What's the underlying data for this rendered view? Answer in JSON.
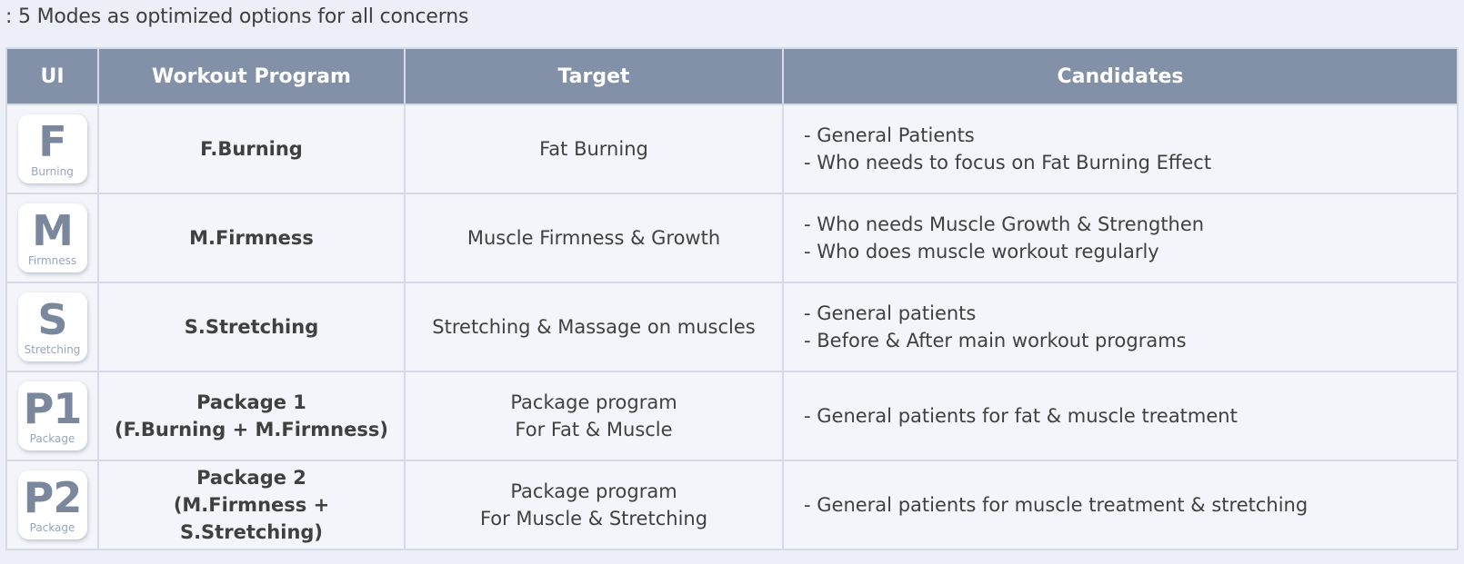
{
  "subtitle": ": 5 Modes as optimized options for all concerns",
  "columns": {
    "ui": "UI",
    "program": "Workout Program",
    "target": "Target",
    "candidates": "Candidates"
  },
  "rows": [
    {
      "icon_letter": "F",
      "icon_sub": "Burning",
      "icon_name": "fat-burning-mode-icon",
      "program": [
        "F.Burning"
      ],
      "target": [
        "Fat Burning"
      ],
      "candidates": [
        "- General Patients",
        "- Who needs to focus on Fat Burning Effect"
      ]
    },
    {
      "icon_letter": "M",
      "icon_sub": "Firmness",
      "icon_name": "muscle-firmness-mode-icon",
      "program": [
        "M.Firmness"
      ],
      "target": [
        "Muscle Firmness & Growth"
      ],
      "candidates": [
        "- Who needs Muscle Growth & Strengthen",
        "- Who does muscle workout regularly"
      ]
    },
    {
      "icon_letter": "S",
      "icon_sub": "Stretching",
      "icon_name": "stretching-mode-icon",
      "program": [
        "S.Stretching"
      ],
      "target": [
        "Stretching & Massage on muscles"
      ],
      "candidates": [
        "- General patients",
        "- Before & After main workout programs"
      ]
    },
    {
      "icon_letter": "P1",
      "icon_sub": "Package",
      "icon_name": "package-1-mode-icon",
      "program": [
        "Package 1",
        "(F.Burning + M.Firmness)"
      ],
      "target": [
        "Package program",
        "For Fat & Muscle"
      ],
      "candidates": [
        "- General patients for fat & muscle treatment"
      ]
    },
    {
      "icon_letter": "P2",
      "icon_sub": "Package",
      "icon_name": "package-2-mode-icon",
      "program": [
        "Package 2",
        "(M.Firmness + S.Stretching)"
      ],
      "target": [
        "Package program",
        "For Muscle & Stretching"
      ],
      "candidates": [
        "- General patients for muscle treatment & stretching"
      ]
    }
  ],
  "colors": {
    "header_bg": "#8290a8",
    "cell_bg": "#f3f5fa",
    "page_bg": "#eceff7",
    "icon_letter": "#7a879c"
  }
}
